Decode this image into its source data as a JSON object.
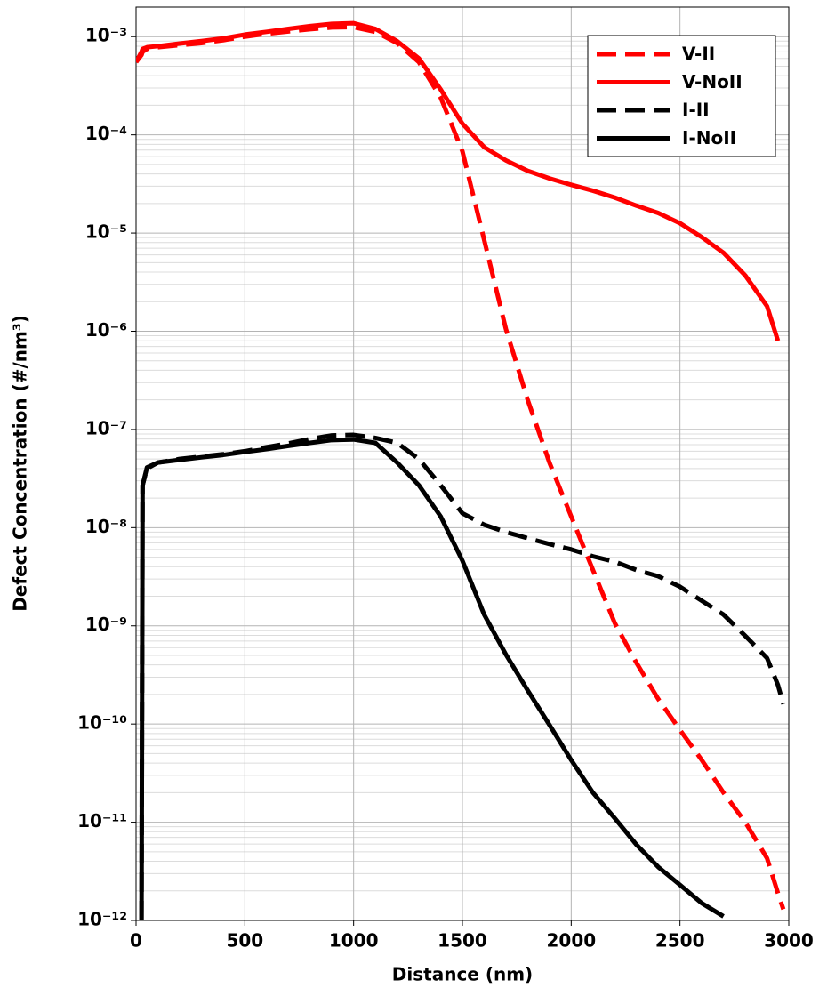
{
  "chart_data": {
    "type": "line",
    "x_label": "Distance (nm)",
    "y_label": "Defect Concentration (#/nm³)",
    "log_y": true,
    "grid": true,
    "minor_grid": true,
    "legend_position": "upper right",
    "xlim": [
      0,
      3000
    ],
    "xticks": [
      0,
      500,
      1000,
      1500,
      2000,
      2500,
      3000
    ],
    "ylim": [
      1e-12,
      0.002
    ],
    "yticks": [
      {
        "value": 1e-12,
        "label": "10⁻¹²"
      },
      {
        "value": 1e-11,
        "label": "10⁻¹¹"
      },
      {
        "value": 1e-10,
        "label": "10⁻¹⁰"
      },
      {
        "value": 1e-09,
        "label": "10⁻⁹"
      },
      {
        "value": 1e-08,
        "label": "10⁻⁸"
      },
      {
        "value": 1e-07,
        "label": "10⁻⁷"
      },
      {
        "value": 1e-06,
        "label": "10⁻⁶"
      },
      {
        "value": 1e-05,
        "label": "10⁻⁵"
      },
      {
        "value": 0.0001,
        "label": "10⁻⁴"
      },
      {
        "value": 0.001,
        "label": "10⁻³"
      }
    ],
    "x": [
      0,
      25,
      30,
      50,
      100,
      200,
      300,
      400,
      500,
      600,
      700,
      800,
      900,
      1000,
      1100,
      1200,
      1300,
      1400,
      1500,
      1600,
      1700,
      1800,
      1900,
      2000,
      2100,
      2200,
      2300,
      2400,
      2500,
      2600,
      2700,
      2800,
      2900,
      2950,
      2975
    ],
    "series": [
      {
        "name": "V-II",
        "color": "#ff0000",
        "dashed": true,
        "values": [
          0.00055,
          0.00065,
          0.0007,
          0.00075,
          0.00078,
          0.00082,
          0.00086,
          0.00092,
          0.001,
          0.00107,
          0.00113,
          0.00119,
          0.00124,
          0.00125,
          0.00112,
          0.00086,
          0.00055,
          0.00024,
          6.8e-05,
          8.5e-06,
          1.05e-06,
          2e-07,
          4.6e-08,
          1.3e-08,
          3.7e-09,
          1.07e-09,
          4.2e-10,
          1.8e-10,
          8.7e-11,
          4.3e-11,
          2e-11,
          1e-11,
          4.3e-12,
          1.9e-12,
          1.3e-12
        ]
      },
      {
        "name": "V-NoII",
        "color": "#ff0000",
        "dashed": false,
        "values": [
          0.00055,
          0.0007,
          0.00075,
          0.00078,
          0.0008,
          0.00085,
          0.0009,
          0.00096,
          0.00105,
          0.00112,
          0.0012,
          0.00128,
          0.00135,
          0.00137,
          0.0012,
          0.0009,
          0.0006,
          0.00029,
          0.00013,
          7.5e-05,
          5.5e-05,
          4.3e-05,
          3.6e-05,
          3.1e-05,
          2.7e-05,
          2.3e-05,
          1.9e-05,
          1.6e-05,
          1.26e-05,
          9.1e-06,
          6.3e-06,
          3.7e-06,
          1.8e-06,
          8e-07,
          null
        ]
      },
      {
        "name": "I-II",
        "color": "#000000",
        "dashed": true,
        "values": [
          null,
          1e-12,
          2.7e-08,
          4e-08,
          4.6e-08,
          5e-08,
          5.3e-08,
          5.6e-08,
          6e-08,
          6.6e-08,
          7.2e-08,
          8e-08,
          8.7e-08,
          8.8e-08,
          8.2e-08,
          7.3e-08,
          5e-08,
          2.7e-08,
          1.4e-08,
          1.07e-08,
          9e-09,
          7.8e-09,
          6.8e-09,
          6e-09,
          5.1e-09,
          4.5e-09,
          3.7e-09,
          3.2e-09,
          2.5e-09,
          1.8e-09,
          1.3e-09,
          7.9e-10,
          4.7e-10,
          2.5e-10,
          1.6e-10
        ]
      },
      {
        "name": "I-NoII",
        "color": "#000000",
        "dashed": false,
        "values": [
          null,
          1e-12,
          2.7e-08,
          4.1e-08,
          4.6e-08,
          4.9e-08,
          5.2e-08,
          5.5e-08,
          5.9e-08,
          6.3e-08,
          6.8e-08,
          7.3e-08,
          7.8e-08,
          7.9e-08,
          7.3e-08,
          4.6e-08,
          2.7e-08,
          1.3e-08,
          4.6e-09,
          1.3e-09,
          5.1e-10,
          2.2e-10,
          9.8e-11,
          4.3e-11,
          2e-11,
          1.1e-11,
          5.9e-12,
          3.5e-12,
          2.3e-12,
          1.5e-12,
          1.1e-12,
          null,
          null,
          null,
          null
        ]
      }
    ]
  }
}
